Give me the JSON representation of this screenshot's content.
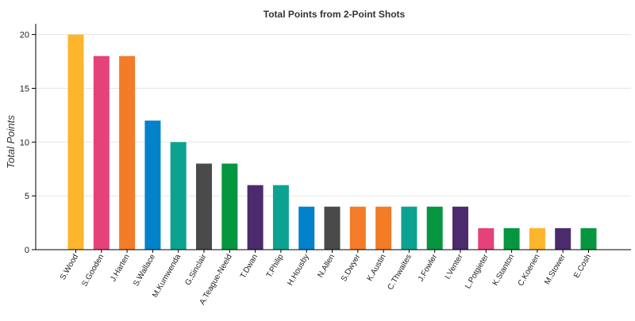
{
  "chart_data": {
    "type": "bar",
    "title": "Total Points from 2-Point Shots",
    "xlabel": "",
    "ylabel": "Total Points",
    "ylim": [
      0,
      21
    ],
    "yticks": [
      0,
      5,
      10,
      15,
      20
    ],
    "grid": "horizontal",
    "categories": [
      "S.Wood",
      "S.Gooden",
      "J.Harten",
      "S.Wallace",
      "M.Kumwenda",
      "G.Sinclair",
      "A.Teague-Neeld",
      "T.Dwan",
      "T.Philip",
      "H.Housby",
      "N.Allen",
      "S.Dwyer",
      "K.Austin",
      "C.Thwaites",
      "J.Fowler",
      "I.Venter",
      "L.Potgieter",
      "K.Stanton",
      "C.Koenen",
      "M.Stower",
      "E.Cosh"
    ],
    "values": [
      20,
      18,
      18,
      12,
      10,
      8,
      8,
      6,
      6,
      4,
      4,
      4,
      4,
      4,
      4,
      4,
      2,
      2,
      2,
      2,
      2
    ],
    "colors": [
      "#FDB52B",
      "#E6427A",
      "#F47B27",
      "#0382CC",
      "#0BA38F",
      "#4A4A4A",
      "#05963F",
      "#4B2B6C",
      "#0BA38F",
      "#0382CC",
      "#4A4A4A",
      "#F47B27",
      "#F47B27",
      "#0BA38F",
      "#05963F",
      "#4B2B6C",
      "#E6427A",
      "#05963F",
      "#FDB52B",
      "#4B2B6C",
      "#05963F"
    ]
  }
}
